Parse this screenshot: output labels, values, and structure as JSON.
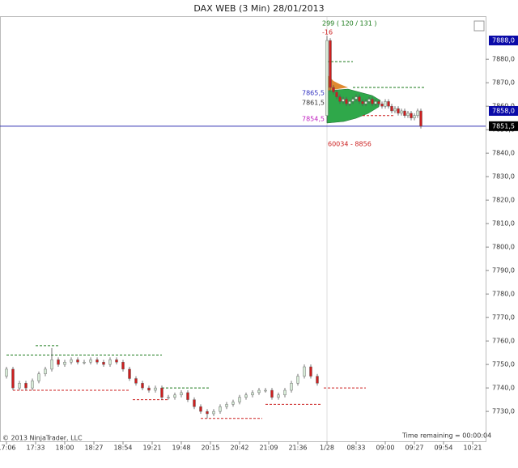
{
  "chart_data": {
    "type": "candlestick",
    "title": "DAX WEB (3 Min)  28/01/2013",
    "x": [
      0,
      2,
      4,
      6,
      8,
      10,
      12,
      14,
      16,
      18,
      20,
      22,
      24,
      26,
      28,
      30,
      32,
      34,
      36,
      38,
      40,
      42,
      44,
      46,
      48,
      50,
      52,
      54,
      56,
      58,
      60,
      62,
      64,
      66,
      68,
      70,
      72,
      74,
      76,
      78,
      80,
      82,
      84,
      86,
      88,
      90,
      92,
      94,
      96,
      99,
      100,
      101,
      102,
      103,
      104,
      105,
      106,
      107,
      108,
      109,
      110,
      111,
      112,
      113,
      114,
      115,
      116,
      117,
      118,
      119,
      120,
      121,
      122,
      123,
      124,
      125,
      126,
      127,
      128
    ],
    "open": [
      7745,
      7748,
      7740,
      7742,
      7740,
      7743,
      7746,
      7748,
      7752,
      7750,
      7751,
      7752,
      7751,
      7751,
      7752,
      7751,
      7750,
      7752,
      7751,
      7748,
      7744,
      7742,
      7740,
      7739,
      7740,
      7736,
      7736,
      7737,
      7738,
      7735,
      7732,
      7730,
      7729,
      7730,
      7732,
      7733,
      7734,
      7736,
      7737,
      7738,
      7739,
      7739,
      7736,
      7737,
      7739,
      7742,
      7745,
      7749,
      7745,
      7856,
      7888,
      7868,
      7866,
      7864,
      7862,
      7863,
      7861,
      7862,
      7863,
      7864,
      7862,
      7861,
      7862,
      7863,
      7861,
      7862,
      7861,
      7860,
      7862,
      7860,
      7858,
      7859,
      7857,
      7858,
      7856,
      7857,
      7855,
      7856,
      7858
    ],
    "high": [
      7749,
      7749,
      7743,
      7743,
      7744,
      7747,
      7749,
      7757,
      7753,
      7752,
      7753,
      7753,
      7752,
      7753,
      7753,
      7752,
      7753,
      7753,
      7752,
      7749,
      7745,
      7743,
      7741,
      7741,
      7741,
      7737,
      7738,
      7739,
      7739,
      7736,
      7733,
      7731,
      7731,
      7733,
      7734,
      7735,
      7737,
      7738,
      7739,
      7740,
      7740,
      7740,
      7738,
      7740,
      7743,
      7746,
      7750,
      7750,
      7746,
      7890,
      7889,
      7869,
      7867,
      7865,
      7864,
      7864,
      7862,
      7864,
      7865,
      7865,
      7863,
      7863,
      7864,
      7864,
      7863,
      7863,
      7862,
      7863,
      7863,
      7861,
      7860,
      7860,
      7859,
      7859,
      7858,
      7858,
      7857,
      7859,
      7859
    ],
    "low": [
      7744,
      7739,
      7739,
      7739,
      7739,
      7742,
      7745,
      7747,
      7749,
      7749,
      7750,
      7750,
      7750,
      7750,
      7750,
      7749,
      7749,
      7750,
      7747,
      7743,
      7741,
      7739,
      7738,
      7738,
      7735,
      7735,
      7735,
      7736,
      7734,
      7731,
      7729,
      7727,
      7728,
      7729,
      7731,
      7732,
      7733,
      7735,
      7736,
      7737,
      7738,
      7735,
      7735,
      7736,
      7738,
      7741,
      7744,
      7744,
      7741,
      7853,
      7866,
      7865,
      7863,
      7861,
      7861,
      7860,
      7860,
      7861,
      7862,
      7861,
      7860,
      7860,
      7861,
      7860,
      7860,
      7860,
      7859,
      7859,
      7859,
      7857,
      7857,
      7856,
      7856,
      7855,
      7855,
      7854,
      7854,
      7855,
      7850.5
    ],
    "close": [
      7748,
      7740,
      7742,
      7740,
      7743,
      7746,
      7748,
      7752,
      7750,
      7751,
      7752,
      7751,
      7751,
      7752,
      7751,
      7750,
      7752,
      7751,
      7748,
      7744,
      7742,
      7740,
      7739,
      7740,
      7736,
      7736,
      7737,
      7738,
      7735,
      7732,
      7730,
      7729,
      7730,
      7732,
      7733,
      7734,
      7736,
      7737,
      7738,
      7739,
      7739,
      7736,
      7737,
      7739,
      7742,
      7745,
      7749,
      7745,
      7742,
      7888,
      7868,
      7866,
      7864,
      7862,
      7863,
      7861,
      7862,
      7863,
      7864,
      7862,
      7861,
      7862,
      7863,
      7861,
      7862,
      7861,
      7860,
      7862,
      7860,
      7858,
      7859,
      7857,
      7858,
      7856,
      7857,
      7855,
      7856,
      7858,
      7851.5
    ],
    "up_color": "#d8ecd8",
    "down_color": "#cc1f1f",
    "xlim": [
      -2,
      148
    ],
    "ylim": [
      7719,
      7898
    ],
    "xticks": [
      {
        "value": 0,
        "label": "17:06"
      },
      {
        "value": 9,
        "label": "17:33"
      },
      {
        "value": 18,
        "label": "18:00"
      },
      {
        "value": 27,
        "label": "18:27"
      },
      {
        "value": 36,
        "label": "18:54"
      },
      {
        "value": 45,
        "label": "19:21"
      },
      {
        "value": 54,
        "label": "19:48"
      },
      {
        "value": 63,
        "label": "20:15"
      },
      {
        "value": 72,
        "label": "20:42"
      },
      {
        "value": 81,
        "label": "21:09"
      },
      {
        "value": 90,
        "label": "21:36"
      },
      {
        "value": 99,
        "label": "1/28"
      },
      {
        "value": 108,
        "label": "08:33"
      },
      {
        "value": 117,
        "label": "09:00"
      },
      {
        "value": 126,
        "label": "09:27"
      },
      {
        "value": 135,
        "label": "09:54"
      },
      {
        "value": 144,
        "label": "10:21"
      }
    ],
    "yticks": [
      {
        "value": 7730,
        "label": "7730,0"
      },
      {
        "value": 7740,
        "label": "7740,0"
      },
      {
        "value": 7750,
        "label": "7750,0"
      },
      {
        "value": 7760,
        "label": "7760,0"
      },
      {
        "value": 7770,
        "label": "7770,0"
      },
      {
        "value": 7780,
        "label": "7780,0"
      },
      {
        "value": 7790,
        "label": "7790,0"
      },
      {
        "value": 7800,
        "label": "7800,0"
      },
      {
        "value": 7810,
        "label": "7810,0"
      },
      {
        "value": 7820,
        "label": "7820,0"
      },
      {
        "value": 7830,
        "label": "7830,0"
      },
      {
        "value": 7840,
        "label": "7840,0"
      },
      {
        "value": 7850,
        "label": "7850,0"
      },
      {
        "value": 7860,
        "label": "7860,0"
      },
      {
        "value": 7870,
        "label": "7870,0"
      },
      {
        "value": 7880,
        "label": "7880,0"
      }
    ],
    "levels": [
      {
        "value": 7754,
        "x": [
          0,
          48
        ],
        "color": "#1a7a1a"
      },
      {
        "value": 7758,
        "x": [
          9,
          16
        ],
        "color": "#1a7a1a"
      },
      {
        "value": 7740,
        "x": [
          48,
          63
        ],
        "color": "#1a7a1a"
      },
      {
        "value": 7739,
        "x": [
          2,
          38
        ],
        "color": "#cc1f1f"
      },
      {
        "value": 7735,
        "x": [
          39,
          50
        ],
        "color": "#cc1f1f"
      },
      {
        "value": 7727,
        "x": [
          60,
          79
        ],
        "color": "#cc1f1f"
      },
      {
        "value": 7733,
        "x": [
          80,
          97
        ],
        "color": "#cc1f1f"
      },
      {
        "value": 7740,
        "x": [
          98,
          111
        ],
        "color": "#cc1f1f"
      },
      {
        "value": 7879,
        "x": [
          99,
          107
        ],
        "color": "#1a7a1a"
      },
      {
        "value": 7868,
        "x": [
          107,
          129
        ],
        "color": "#1a7a1a"
      },
      {
        "value": 7856,
        "x": [
          110,
          120
        ],
        "color": "#cc1f1f"
      }
    ],
    "current_price": 7851.5,
    "price_markers": [
      {
        "value": 7888,
        "label": "7888,0",
        "color": "#0a0aa8"
      },
      {
        "value": 7858,
        "label": "7858,0",
        "color": "#0a0aa8"
      },
      {
        "value": 7851.5,
        "label": "7851,5",
        "color": "#000000"
      }
    ],
    "profile_labels": [
      {
        "value": 7865.5,
        "label": "7865,5",
        "color": "#3030c0"
      },
      {
        "value": 7861.5,
        "label": "7861,5",
        "color": "#333333"
      },
      {
        "value": 7854.5,
        "label": "7854,5",
        "color": "#c020c0"
      }
    ],
    "volume_text": "299 ( 120 / 131 )",
    "delta_text": "-16",
    "range_text": "60034 - 8856",
    "copyright": "© 2013 NinjaTrader, LLC",
    "time_remaining": "Time remaining = 00:00:04"
  }
}
